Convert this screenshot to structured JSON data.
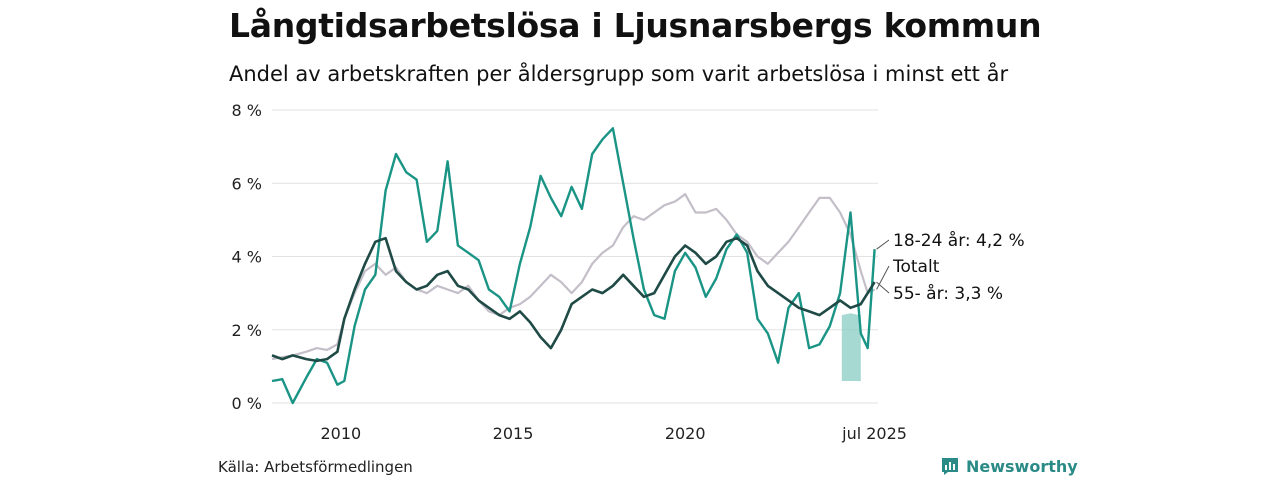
{
  "header": {
    "title": "Långtidsarbetslösa i Ljusnarsbergs kommun",
    "subtitle": "Andel av arbetskraften per åldersgrupp som varit arbetslösa i minst ett år"
  },
  "footer": {
    "source": "Källa: Arbetsförmedlingen",
    "brand": "Newsworthy"
  },
  "colors": {
    "youth": "#1a9485",
    "total": "#c3bec8",
    "older": "#1f4a46",
    "band": "#8fd0c6",
    "grid": "#e2e2e2",
    "brand": "#2a8a86"
  },
  "chart_data": {
    "type": "line",
    "title": "Långtidsarbetslösa i Ljusnarsbergs kommun",
    "subtitle": "Andel av arbetskraften per åldersgrupp som varit arbetslösa i minst ett år",
    "x_ticks": [
      "2010",
      "2015",
      "2020",
      "jul 2025"
    ],
    "x_tick_values": [
      2010.0,
      2015.0,
      2020.0,
      2025.5
    ],
    "xlim": [
      2008.0,
      2025.6
    ],
    "y_ticks": [
      "0 %",
      "2 %",
      "4 %",
      "6 %",
      "8 %"
    ],
    "y_tick_values": [
      0,
      2,
      4,
      6,
      8
    ],
    "ylim": [
      0,
      8
    ],
    "y_unit": "%",
    "grid": true,
    "series": [
      {
        "key": "total",
        "name": "Totalt",
        "label": "Totalt",
        "x": [
          2008.0,
          2008.3,
          2008.6,
          2009.0,
          2009.3,
          2009.6,
          2009.9,
          2010.1,
          2010.4,
          2010.7,
          2011.0,
          2011.3,
          2011.6,
          2011.9,
          2012.2,
          2012.5,
          2012.8,
          2013.1,
          2013.4,
          2013.7,
          2014.0,
          2014.3,
          2014.6,
          2014.9,
          2015.2,
          2015.5,
          2015.8,
          2016.1,
          2016.4,
          2016.7,
          2017.0,
          2017.3,
          2017.6,
          2017.9,
          2018.2,
          2018.5,
          2018.8,
          2019.1,
          2019.4,
          2019.7,
          2020.0,
          2020.3,
          2020.6,
          2020.9,
          2021.2,
          2021.5,
          2021.8,
          2022.1,
          2022.4,
          2022.7,
          2023.0,
          2023.3,
          2023.6,
          2023.9,
          2024.2,
          2024.5,
          2024.8,
          2025.1,
          2025.3,
          2025.5
        ],
        "values": [
          1.2,
          1.25,
          1.3,
          1.4,
          1.5,
          1.45,
          1.6,
          2.3,
          3.0,
          3.6,
          3.8,
          3.5,
          3.7,
          3.3,
          3.1,
          3.0,
          3.2,
          3.1,
          3.0,
          3.2,
          2.8,
          2.5,
          2.4,
          2.6,
          2.7,
          2.9,
          3.2,
          3.5,
          3.3,
          3.0,
          3.3,
          3.8,
          4.1,
          4.3,
          4.8,
          5.1,
          5.0,
          5.2,
          5.4,
          5.5,
          5.7,
          5.2,
          5.2,
          5.3,
          5.0,
          4.6,
          4.4,
          4.0,
          3.8,
          4.1,
          4.4,
          4.8,
          5.2,
          5.6,
          5.6,
          5.2,
          4.6,
          3.6,
          3.0,
          3.1
        ]
      },
      {
        "key": "youth",
        "name": "18-24 år",
        "label": "18-24 år: 4,2 %",
        "x": [
          2008.0,
          2008.3,
          2008.6,
          2009.0,
          2009.3,
          2009.6,
          2009.9,
          2010.1,
          2010.4,
          2010.7,
          2011.0,
          2011.3,
          2011.6,
          2011.9,
          2012.2,
          2012.5,
          2012.8,
          2013.1,
          2013.4,
          2013.7,
          2014.0,
          2014.3,
          2014.6,
          2014.9,
          2015.2,
          2015.5,
          2015.8,
          2016.1,
          2016.4,
          2016.7,
          2017.0,
          2017.3,
          2017.6,
          2017.9,
          2018.2,
          2018.5,
          2018.8,
          2019.1,
          2019.4,
          2019.7,
          2020.0,
          2020.3,
          2020.6,
          2020.9,
          2021.2,
          2021.5,
          2021.8,
          2022.1,
          2022.4,
          2022.7,
          2023.0,
          2023.3,
          2023.6,
          2023.9,
          2024.2,
          2024.5,
          2024.8,
          2025.1,
          2025.3,
          2025.5
        ],
        "values": [
          0.6,
          0.65,
          0.0,
          0.7,
          1.2,
          1.1,
          0.5,
          0.6,
          2.1,
          3.1,
          3.5,
          5.8,
          6.8,
          6.3,
          6.1,
          4.4,
          4.7,
          6.6,
          4.3,
          4.1,
          3.9,
          3.1,
          2.9,
          2.5,
          3.8,
          4.8,
          6.2,
          5.6,
          5.1,
          5.9,
          5.3,
          6.8,
          7.2,
          7.5,
          6.0,
          4.5,
          3.1,
          2.4,
          2.3,
          3.6,
          4.1,
          3.7,
          2.9,
          3.4,
          4.2,
          4.6,
          4.1,
          2.3,
          1.9,
          1.1,
          2.6,
          3.0,
          1.5,
          1.6,
          2.1,
          3.0,
          5.2,
          1.9,
          1.5,
          4.2
        ]
      },
      {
        "key": "older",
        "name": "55- år",
        "label": "55- år: 3,3 %",
        "x": [
          2008.0,
          2008.3,
          2008.6,
          2009.0,
          2009.3,
          2009.6,
          2009.9,
          2010.1,
          2010.4,
          2010.7,
          2011.0,
          2011.3,
          2011.6,
          2011.9,
          2012.2,
          2012.5,
          2012.8,
          2013.1,
          2013.4,
          2013.7,
          2014.0,
          2014.3,
          2014.6,
          2014.9,
          2015.2,
          2015.5,
          2015.8,
          2016.1,
          2016.4,
          2016.7,
          2017.0,
          2017.3,
          2017.6,
          2017.9,
          2018.2,
          2018.5,
          2018.8,
          2019.1,
          2019.4,
          2019.7,
          2020.0,
          2020.3,
          2020.6,
          2020.9,
          2021.2,
          2021.5,
          2021.8,
          2022.1,
          2022.4,
          2022.7,
          2023.0,
          2023.3,
          2023.6,
          2023.9,
          2024.2,
          2024.5,
          2024.8,
          2025.1,
          2025.3,
          2025.5
        ],
        "values": [
          1.3,
          1.2,
          1.3,
          1.2,
          1.15,
          1.2,
          1.4,
          2.3,
          3.1,
          3.8,
          4.4,
          4.5,
          3.6,
          3.3,
          3.1,
          3.2,
          3.5,
          3.6,
          3.2,
          3.1,
          2.8,
          2.6,
          2.4,
          2.3,
          2.5,
          2.2,
          1.8,
          1.5,
          2.0,
          2.7,
          2.9,
          3.1,
          3.0,
          3.2,
          3.5,
          3.2,
          2.9,
          3.0,
          3.5,
          4.0,
          4.3,
          4.1,
          3.8,
          4.0,
          4.4,
          4.5,
          4.3,
          3.6,
          3.2,
          3.0,
          2.8,
          2.6,
          2.5,
          2.4,
          2.6,
          2.8,
          2.6,
          2.7,
          3.0,
          3.3
        ]
      }
    ],
    "band": {
      "name": "18-24 år",
      "x": [
        2024.55,
        2024.8,
        2025.05,
        2025.1
      ],
      "low": [
        0.6,
        0.6,
        0.6,
        0.6
      ],
      "high": [
        2.4,
        2.45,
        2.4,
        2.4
      ]
    }
  }
}
